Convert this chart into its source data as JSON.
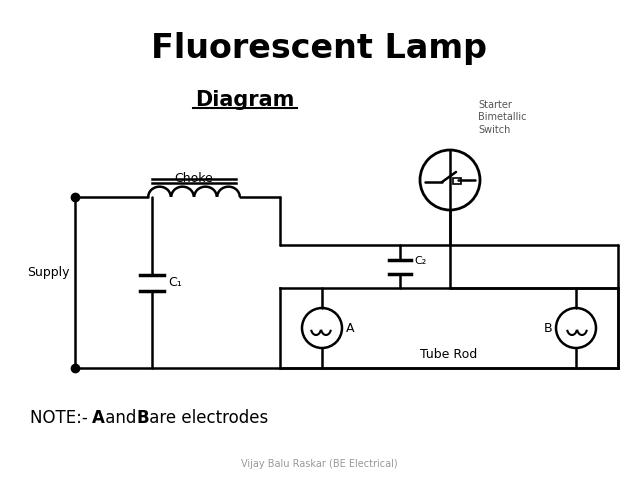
{
  "title": "Fluorescent Lamp",
  "subtitle": "Diagram",
  "note": "NOTE:- ",
  "note_bold_A": "A",
  "note_mid": " and ",
  "note_bold_B": "B",
  "note_end": " are electrodes",
  "footer": "Vijay Balu Raskar (BE Electrical)",
  "bg_color": "#ffffff",
  "line_color": "#000000",
  "label_choke": "Choke",
  "label_supply": "Supply",
  "label_c1": "C₁",
  "label_c2": "C₂",
  "label_starter": "Starter\nBimetallic\nSwitch",
  "label_A": "A",
  "label_B": "B",
  "label_tube": "Tube Rod"
}
